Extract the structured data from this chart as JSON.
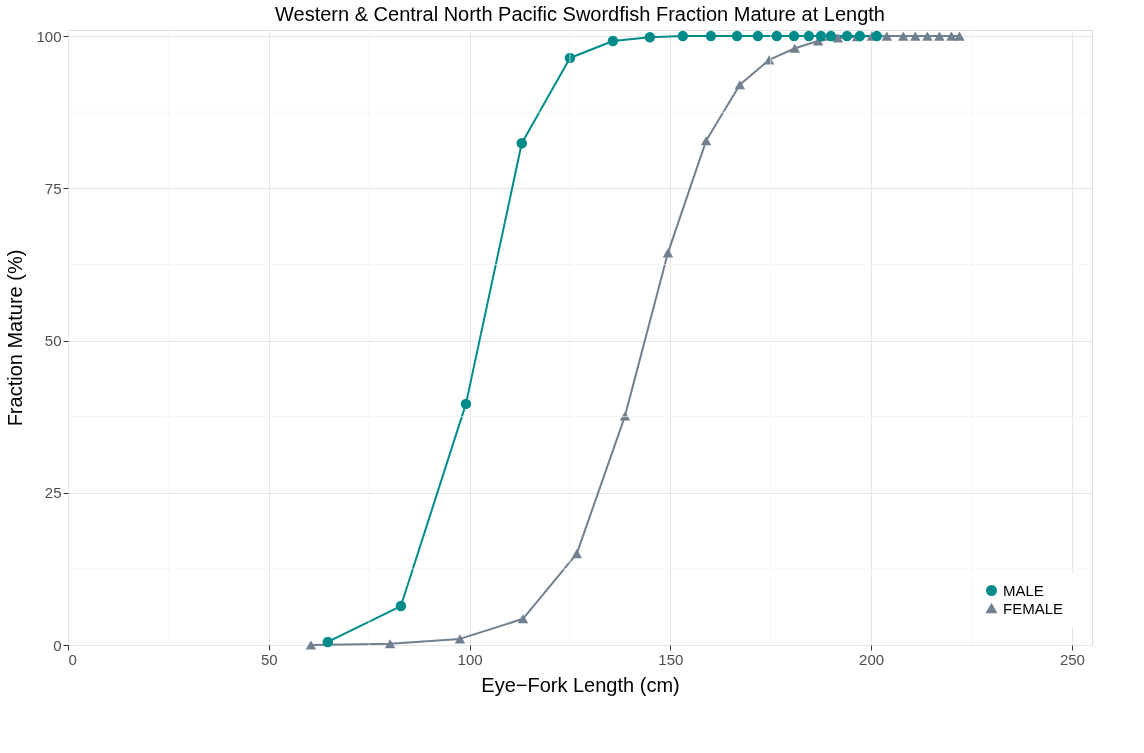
{
  "chart_data": {
    "type": "line",
    "title": "Western & Central North Pacific Swordfish Fraction Mature at Length",
    "xlabel": "Eye−Fork Length (cm)",
    "ylabel": "Fraction Mature (%)",
    "xlim": [
      0,
      255
    ],
    "ylim": [
      0,
      101
    ],
    "xticks": [
      0,
      50,
      100,
      150,
      200,
      250
    ],
    "yticks": [
      0,
      25,
      50,
      75,
      100
    ],
    "grid": true,
    "legend": "bottom right",
    "series": [
      {
        "name": "MALE",
        "color": "#008b8b",
        "marker": "circle",
        "x": [
          64.7,
          82.9,
          99.1,
          113.0,
          125.0,
          135.7,
          144.9,
          153.1,
          160.1,
          166.6,
          171.8,
          176.5,
          180.8,
          184.5,
          187.5,
          190.0,
          194.0,
          197.2,
          201.4
        ],
        "values": [
          0.5,
          6.4,
          39.6,
          82.4,
          96.4,
          99.2,
          99.8,
          100,
          100,
          100,
          100,
          100,
          100,
          100,
          100,
          100,
          100,
          100,
          100
        ]
      },
      {
        "name": "FEMALE",
        "color": "#708090",
        "marker": "triangle",
        "x": [
          60.5,
          80.2,
          97.6,
          113.3,
          126.7,
          138.7,
          149.4,
          158.9,
          167.3,
          174.6,
          181.0,
          186.8,
          191.7,
          196.5,
          200.2,
          203.9,
          208,
          211,
          214,
          217,
          220,
          222
        ],
        "values": [
          0,
          0.2,
          1.0,
          4.3,
          15.0,
          37.6,
          64.4,
          82.8,
          92.0,
          96.1,
          98.0,
          99.2,
          99.7,
          99.9,
          100,
          100,
          100,
          100,
          100,
          100,
          100,
          100
        ]
      }
    ]
  }
}
